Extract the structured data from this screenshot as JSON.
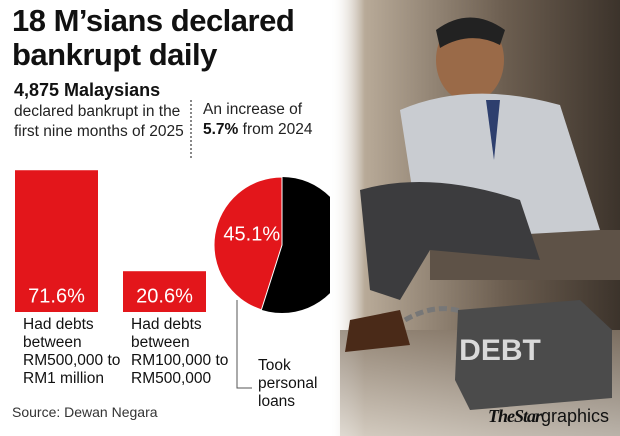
{
  "chart_data": [
    {
      "type": "bar",
      "categories": [
        "Had debts between RM500,000 to RM1 million",
        "Had debts between RM100,000 to RM500,000"
      ],
      "values": [
        71.6,
        20.6
      ],
      "value_labels": [
        "71.6%",
        "20.6%"
      ],
      "color": "#e3161b",
      "ylim": [
        0,
        100
      ],
      "grid": false
    },
    {
      "type": "pie",
      "categories": [
        "Took personal loans"
      ],
      "values": [
        45.1
      ],
      "value_labels": [
        "45.1%"
      ],
      "color": "#e3161b",
      "rest_color": "#000000"
    }
  ],
  "title": "18 M’sians declared bankrupt daily",
  "stats": [
    {
      "highlight": "4,875 Malaysians",
      "text": "declared bankrupt in the first nine months of 2025"
    },
    {
      "text_before": "An increase of",
      "highlight": "5.7%",
      "text_after": "from 2024"
    }
  ],
  "photo_text": "DEBT",
  "source": "Source: Dewan Negara",
  "brand": {
    "name": "TheStar",
    "suffix": "graphics"
  }
}
